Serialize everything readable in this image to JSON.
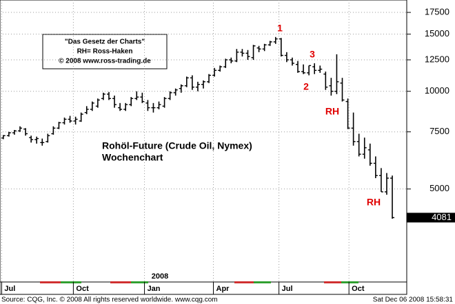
{
  "chart_data": {
    "type": "ohlc",
    "title": "Rohöl-Future (Crude Oil, Nymex)",
    "subtitle": "Wochenchart",
    "info_box": [
      "\"Das Gesetz der Charts\"",
      "RH= Ross-Haken",
      "© 2008 www.ross-trading.de"
    ],
    "annotations": [
      "1",
      "2",
      "3",
      "RH",
      "RH"
    ],
    "year_label": "2008",
    "source": "Source: CQG, Inc. © 2008 All rights reserved worldwide. www.cqg.com",
    "timestamp": "Sat Dec 06 2008 15:58:31",
    "color": "#000000",
    "annotation_color": "#e00000",
    "log_scale": true,
    "grid": true,
    "ylim": [
      2585,
      19110
    ],
    "yticks": [
      5000,
      7500,
      10000,
      12500,
      15000,
      17500
    ],
    "xlim": [
      -0.6,
      72.6
    ],
    "xticks": [
      {
        "value": -0.3,
        "label": "Jul"
      },
      {
        "value": 12.6,
        "label": "Oct"
      },
      {
        "value": 25.4,
        "label": "Jan"
      },
      {
        "value": 37.8,
        "label": "Apr"
      },
      {
        "value": 49.6,
        "label": "Jul"
      },
      {
        "value": 62.2,
        "label": "Oct"
      }
    ],
    "x": [
      0,
      1,
      2,
      3,
      4,
      5,
      6,
      7,
      8,
      9,
      10,
      11,
      12,
      13,
      14,
      15,
      16,
      17,
      18,
      19,
      20,
      21,
      22,
      23,
      24,
      25,
      26,
      27,
      28,
      29,
      30,
      31,
      32,
      33,
      34,
      35,
      36,
      37,
      38,
      39,
      40,
      41,
      42,
      43,
      44,
      45,
      46,
      47,
      48,
      49,
      50,
      51,
      52,
      53,
      54,
      55,
      56,
      57,
      58,
      59,
      60,
      61,
      62,
      63,
      64,
      65,
      66,
      67,
      68,
      69,
      70
    ],
    "open": [
      7180,
      7300,
      7450,
      7550,
      7650,
      7200,
      7100,
      6950,
      7000,
      7400,
      7700,
      8000,
      8200,
      8100,
      8100,
      8600,
      8800,
      9000,
      9500,
      9800,
      9500,
      8900,
      8800,
      9100,
      9500,
      9600,
      9200,
      8900,
      8900,
      9000,
      9500,
      9900,
      10200,
      10400,
      11000,
      10300,
      10500,
      10700,
      11200,
      11600,
      11900,
      12500,
      12400,
      13200,
      13100,
      12700,
      13600,
      13500,
      13900,
      14200,
      14500,
      12900,
      12500,
      12100,
      11500,
      11400,
      11900,
      11600,
      11300,
      10400,
      10000,
      10600,
      9300,
      7700,
      7000,
      6400,
      6600,
      6000,
      5500,
      4900,
      5400
    ],
    "high": [
      7330,
      7500,
      7600,
      7800,
      7700,
      7300,
      7250,
      7150,
      7400,
      7800,
      8050,
      8300,
      8400,
      8350,
      8600,
      9000,
      9300,
      9500,
      9900,
      9950,
      9700,
      9200,
      9200,
      9600,
      10000,
      9900,
      9400,
      9200,
      9300,
      9600,
      10000,
      10200,
      10500,
      11100,
      11200,
      10700,
      10800,
      11300,
      11800,
      12000,
      12600,
      12700,
      13500,
      13500,
      13400,
      13900,
      13800,
      14000,
      14300,
      14700,
      14600,
      13200,
      12700,
      12400,
      12100,
      12000,
      12200,
      12000,
      11500,
      11000,
      13000,
      11000,
      9500,
      8600,
      7400,
      7200,
      6900,
      6300,
      5800,
      5600,
      5500
    ],
    "low": [
      7120,
      7250,
      7350,
      7500,
      7300,
      6950,
      6900,
      6800,
      6950,
      7350,
      7650,
      7900,
      8000,
      7900,
      8050,
      8500,
      8700,
      8900,
      9400,
      9400,
      8900,
      8700,
      8700,
      9000,
      9400,
      9200,
      8700,
      8600,
      8800,
      8900,
      9400,
      9700,
      9900,
      10300,
      10100,
      10000,
      10200,
      10600,
      11100,
      11500,
      11800,
      12200,
      12300,
      12800,
      12500,
      12500,
      13200,
      13300,
      13800,
      14000,
      12800,
      12300,
      12000,
      11400,
      11300,
      11200,
      11300,
      11400,
      10100,
      9700,
      9800,
      9300,
      7650,
      6800,
      6300,
      6200,
      5900,
      5400,
      4900,
      4800,
      4050
    ],
    "close": [
      7300,
      7450,
      7550,
      7700,
      7400,
      7100,
      7150,
      6950,
      7300,
      7700,
      8000,
      8200,
      8100,
      8200,
      8500,
      8800,
      9200,
      9400,
      9800,
      9500,
      9100,
      8800,
      9100,
      9500,
      9600,
      9300,
      8900,
      8900,
      9100,
      9500,
      9900,
      10100,
      10400,
      11000,
      10300,
      10500,
      10700,
      11200,
      11600,
      11900,
      12500,
      12400,
      13200,
      13100,
      12800,
      13800,
      13500,
      13900,
      14200,
      14500,
      12900,
      12500,
      12200,
      11500,
      11400,
      12000,
      11600,
      11700,
      10300,
      10000,
      10700,
      9400,
      7700,
      7000,
      6400,
      6700,
      6000,
      5500,
      4900,
      5400,
      4081
    ]
  }
}
